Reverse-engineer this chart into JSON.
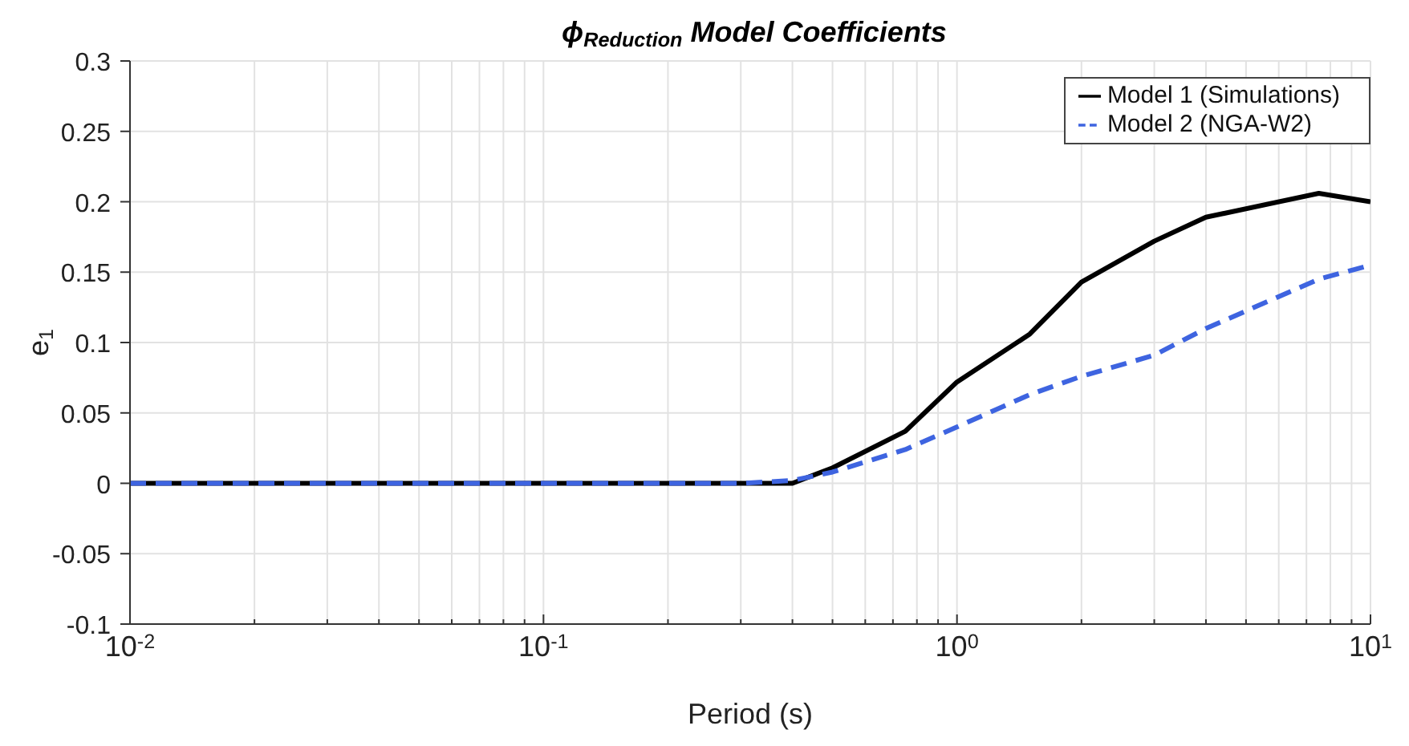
{
  "chart_data": {
    "type": "line",
    "title": "ϕ$_{Reduction}$ Model Coefficients",
    "xlabel": "Period (s)",
    "ylabel": "e$_{1}$",
    "x": [
      0.01,
      0.02,
      0.05,
      0.1,
      0.2,
      0.3,
      0.4,
      0.5,
      0.75,
      1,
      1.5,
      2,
      3,
      4,
      7.5,
      10
    ],
    "series": [
      {
        "name": "Model 1 (Simulations)",
        "color": "#000000",
        "line_style": "solid",
        "values": [
          0,
          0,
          0,
          0,
          0,
          0,
          0,
          0.011,
          0.037,
          0.072,
          0.106,
          0.143,
          0.172,
          0.189,
          0.206,
          0.2
        ]
      },
      {
        "name": "Model 2 (NGA-W2)",
        "color": "#3e64e0",
        "line_style": "dashed",
        "values": [
          0,
          0,
          0,
          0,
          0,
          0,
          0.002,
          0.008,
          0.024,
          0.04,
          0.063,
          0.076,
          0.091,
          0.11,
          0.145,
          0.155
        ]
      }
    ],
    "log": "x",
    "xlim": [
      0.01,
      10
    ],
    "xticks": [
      {
        "value": 0.01,
        "label": "10$^{-2}$"
      },
      {
        "value": 0.02,
        "label": null
      },
      {
        "value": 0.03,
        "label": null
      },
      {
        "value": 0.04,
        "label": null
      },
      {
        "value": 0.05,
        "label": null
      },
      {
        "value": 0.06,
        "label": null
      },
      {
        "value": 0.07,
        "label": null
      },
      {
        "value": 0.08,
        "label": null
      },
      {
        "value": 0.09,
        "label": null
      },
      {
        "value": 0.1,
        "label": "10$^{-1}$"
      },
      {
        "value": 0.2,
        "label": null
      },
      {
        "value": 0.3,
        "label": null
      },
      {
        "value": 0.4,
        "label": null
      },
      {
        "value": 0.5,
        "label": null
      },
      {
        "value": 0.6,
        "label": null
      },
      {
        "value": 0.7,
        "label": null
      },
      {
        "value": 0.8,
        "label": null
      },
      {
        "value": 0.9,
        "label": null
      },
      {
        "value": 1,
        "label": "10$^{0}$"
      },
      {
        "value": 2,
        "label": null
      },
      {
        "value": 3,
        "label": null
      },
      {
        "value": 4,
        "label": null
      },
      {
        "value": 5,
        "label": null
      },
      {
        "value": 6,
        "label": null
      },
      {
        "value": 7,
        "label": null
      },
      {
        "value": 8,
        "label": null
      },
      {
        "value": 9,
        "label": null
      },
      {
        "value": 10,
        "label": "10$^{1}$"
      }
    ],
    "ylim": [
      -0.1,
      0.3
    ],
    "yticks": [
      -0.1,
      -0.05,
      0,
      0.05,
      0.1,
      0.15,
      0.2,
      0.25,
      0.3
    ],
    "grid": true,
    "legend": "top right",
    "marker": "none"
  }
}
